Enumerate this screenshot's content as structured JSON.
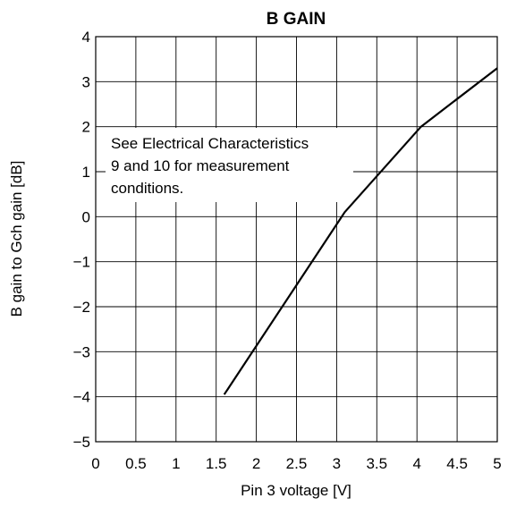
{
  "chart_data": {
    "type": "line",
    "title": "B GAIN",
    "xlabel": "Pin 3 voltage [V]",
    "ylabel": "B gain to Gch gain [dB]",
    "xlim": [
      0,
      5
    ],
    "ylim": [
      -5,
      4
    ],
    "x_ticks": [
      {
        "value": 0,
        "label": "0"
      },
      {
        "value": 0.5,
        "label": "0.5"
      },
      {
        "value": 1,
        "label": "1"
      },
      {
        "value": 1.5,
        "label": "1.5"
      },
      {
        "value": 2,
        "label": "2"
      },
      {
        "value": 2.5,
        "label": "2.5"
      },
      {
        "value": 3,
        "label": "3"
      },
      {
        "value": 3.5,
        "label": "3.5"
      },
      {
        "value": 4,
        "label": "4"
      },
      {
        "value": 4.5,
        "label": "4.5"
      },
      {
        "value": 5,
        "label": "5"
      }
    ],
    "y_ticks": [
      {
        "value": 4,
        "label": "4"
      },
      {
        "value": 3,
        "label": "3"
      },
      {
        "value": 2,
        "label": "2"
      },
      {
        "value": 1,
        "label": "1"
      },
      {
        "value": 0,
        "label": "0"
      },
      {
        "value": -1,
        "label": "−1"
      },
      {
        "value": -2,
        "label": "−2"
      },
      {
        "value": -3,
        "label": "−3"
      },
      {
        "value": -4,
        "label": "−4"
      },
      {
        "value": -5,
        "label": "−5"
      }
    ],
    "grid": true,
    "series": [
      {
        "x": [
          1.6,
          3.1,
          4.05,
          5.0
        ],
        "y": [
          -3.95,
          0.1,
          2.0,
          3.3
        ]
      }
    ],
    "annotation": {
      "lines": [
        "See Electrical Characteristics",
        "9 and 10 for measurement",
        "conditions."
      ]
    },
    "colors": {
      "line": "#000000",
      "grid": "#000000",
      "background": "#ffffff"
    }
  }
}
